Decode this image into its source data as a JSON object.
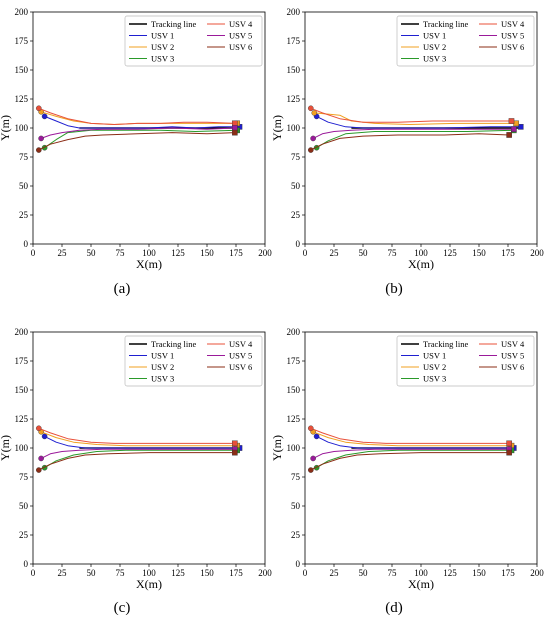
{
  "figure": {
    "panels": [
      "(a)",
      "(b)",
      "(c)",
      "(d)"
    ]
  },
  "series_style": {
    "names": [
      "Tracking line",
      "USV 1",
      "USV 2",
      "USV 3",
      "USV 4",
      "USV 5",
      "USV 6"
    ],
    "colors": [
      "#000000",
      "#1f1fd0",
      "#f0a020",
      "#2a9a2a",
      "#e8503a",
      "#9a1a9a",
      "#8b2d16"
    ]
  },
  "chart_data": [
    {
      "type": "line",
      "panel_label": "(a)",
      "xlabel": "X(m)",
      "ylabel": "Y(m)",
      "xlim": [
        0,
        200
      ],
      "ylim": [
        0,
        200
      ],
      "xticks": [
        0,
        25,
        50,
        75,
        100,
        125,
        150,
        175,
        200
      ],
      "yticks": [
        0,
        25,
        50,
        75,
        100,
        125,
        150,
        175,
        200
      ],
      "legend_position": "top-right",
      "series": [
        {
          "name": "Tracking line",
          "x": [
            40,
            176
          ],
          "y": [
            100,
            100
          ]
        },
        {
          "name": "USV 1",
          "x": [
            10,
            20,
            30,
            40,
            60,
            80,
            100,
            120,
            140,
            160,
            178
          ],
          "y": [
            110,
            106,
            102,
            100,
            100,
            100,
            100,
            101,
            100,
            101,
            101
          ]
        },
        {
          "name": "USV 2",
          "x": [
            7,
            20,
            35,
            50,
            70,
            90,
            110,
            130,
            150,
            176
          ],
          "y": [
            114,
            110,
            106,
            104,
            103,
            104,
            104,
            104,
            104,
            104
          ]
        },
        {
          "name": "USV 3",
          "x": [
            10,
            20,
            30,
            50,
            80,
            110,
            140,
            176
          ],
          "y": [
            83,
            90,
            96,
            98,
            98,
            98,
            97,
            98
          ]
        },
        {
          "name": "USV 4",
          "x": [
            5,
            15,
            30,
            50,
            70,
            90,
            110,
            130,
            150,
            174
          ],
          "y": [
            117,
            113,
            108,
            104,
            103,
            104,
            104,
            105,
            105,
            104
          ]
        },
        {
          "name": "USV 5",
          "x": [
            7,
            15,
            25,
            40,
            60,
            90,
            120,
            150,
            174
          ],
          "y": [
            91,
            94,
            96,
            98,
            99,
            99,
            100,
            99,
            100
          ]
        },
        {
          "name": "USV 6",
          "x": [
            5,
            15,
            30,
            45,
            60,
            90,
            120,
            150,
            174
          ],
          "y": [
            81,
            86,
            90,
            93,
            94,
            95,
            96,
            95,
            96
          ]
        }
      ]
    },
    {
      "type": "line",
      "panel_label": "(b)",
      "xlabel": "X(m)",
      "ylabel": "Y(m)",
      "xlim": [
        0,
        200
      ],
      "ylim": [
        0,
        200
      ],
      "xticks": [
        0,
        25,
        50,
        75,
        100,
        125,
        150,
        175,
        200
      ],
      "yticks": [
        0,
        25,
        50,
        75,
        100,
        125,
        150,
        175,
        200
      ],
      "legend_position": "top-right",
      "series": [
        {
          "name": "Tracking line",
          "x": [
            40,
            186
          ],
          "y": [
            100,
            100
          ]
        },
        {
          "name": "USV 1",
          "x": [
            10,
            20,
            35,
            50,
            80,
            120,
            160,
            186
          ],
          "y": [
            110,
            105,
            101,
            100,
            100,
            100,
            101,
            101
          ]
        },
        {
          "name": "USV 2",
          "x": [
            8,
            20,
            30,
            40,
            60,
            90,
            130,
            182
          ],
          "y": [
            113,
            112,
            111,
            106,
            104,
            103,
            104,
            104
          ]
        },
        {
          "name": "USV 3",
          "x": [
            10,
            20,
            35,
            60,
            100,
            140,
            180
          ],
          "y": [
            83,
            89,
            95,
            97,
            97,
            97,
            98
          ]
        },
        {
          "name": "USV 4",
          "x": [
            5,
            15,
            30,
            50,
            80,
            110,
            140,
            178
          ],
          "y": [
            117,
            113,
            108,
            105,
            105,
            106,
            106,
            106
          ]
        },
        {
          "name": "USV 5",
          "x": [
            7,
            15,
            25,
            40,
            60,
            100,
            140,
            180
          ],
          "y": [
            91,
            95,
            97,
            98,
            99,
            99,
            99,
            99
          ]
        },
        {
          "name": "USV 6",
          "x": [
            5,
            15,
            30,
            50,
            80,
            120,
            150,
            176
          ],
          "y": [
            81,
            86,
            91,
            93,
            94,
            94,
            95,
            94
          ]
        }
      ]
    },
    {
      "type": "line",
      "panel_label": "(c)",
      "xlabel": "X(m)",
      "ylabel": "Y(m)",
      "xlim": [
        0,
        200
      ],
      "ylim": [
        0,
        200
      ],
      "xticks": [
        0,
        25,
        50,
        75,
        100,
        125,
        150,
        175,
        200
      ],
      "yticks": [
        0,
        25,
        50,
        75,
        100,
        125,
        150,
        175,
        200
      ],
      "legend_position": "top-right",
      "series": [
        {
          "name": "Tracking line",
          "x": [
            40,
            178
          ],
          "y": [
            100,
            100
          ]
        },
        {
          "name": "USV 1",
          "x": [
            10,
            20,
            30,
            45,
            60,
            100,
            140,
            178
          ],
          "y": [
            110,
            105,
            102,
            100,
            100,
            100,
            100,
            100
          ]
        },
        {
          "name": "USV 2",
          "x": [
            7,
            20,
            35,
            55,
            80,
            120,
            176
          ],
          "y": [
            114,
            109,
            105,
            103,
            102,
            102,
            102
          ]
        },
        {
          "name": "USV 3",
          "x": [
            10,
            20,
            35,
            55,
            80,
            120,
            176
          ],
          "y": [
            83,
            89,
            94,
            97,
            98,
            98,
            98
          ]
        },
        {
          "name": "USV 4",
          "x": [
            5,
            15,
            30,
            50,
            70,
            100,
            140,
            174
          ],
          "y": [
            117,
            113,
            108,
            105,
            104,
            104,
            104,
            104
          ]
        },
        {
          "name": "USV 5",
          "x": [
            7,
            15,
            25,
            40,
            60,
            100,
            140,
            174
          ],
          "y": [
            91,
            95,
            97,
            98,
            99,
            99,
            99,
            99
          ]
        },
        {
          "name": "USV 6",
          "x": [
            5,
            15,
            30,
            45,
            65,
            100,
            140,
            174
          ],
          "y": [
            81,
            86,
            91,
            94,
            95,
            96,
            96,
            96
          ]
        }
      ]
    },
    {
      "type": "line",
      "panel_label": "(d)",
      "xlabel": "X(m)",
      "ylabel": "Y(m)",
      "xlim": [
        0,
        200
      ],
      "ylim": [
        0,
        200
      ],
      "xticks": [
        0,
        25,
        50,
        75,
        100,
        125,
        150,
        175,
        200
      ],
      "yticks": [
        0,
        25,
        50,
        75,
        100,
        125,
        150,
        175,
        200
      ],
      "legend_position": "top-right",
      "series": [
        {
          "name": "Tracking line",
          "x": [
            40,
            180
          ],
          "y": [
            100,
            100
          ]
        },
        {
          "name": "USV 1",
          "x": [
            10,
            20,
            30,
            45,
            60,
            100,
            140,
            180
          ],
          "y": [
            110,
            105,
            102,
            100,
            100,
            100,
            100,
            100
          ]
        },
        {
          "name": "USV 2",
          "x": [
            7,
            20,
            35,
            55,
            80,
            120,
            178
          ],
          "y": [
            114,
            109,
            105,
            103,
            102,
            102,
            102
          ]
        },
        {
          "name": "USV 3",
          "x": [
            10,
            20,
            35,
            55,
            80,
            120,
            178
          ],
          "y": [
            83,
            89,
            94,
            97,
            98,
            98,
            98
          ]
        },
        {
          "name": "USV 4",
          "x": [
            5,
            15,
            30,
            50,
            70,
            100,
            140,
            176
          ],
          "y": [
            117,
            113,
            108,
            105,
            104,
            104,
            104,
            104
          ]
        },
        {
          "name": "USV 5",
          "x": [
            7,
            15,
            25,
            40,
            60,
            100,
            140,
            176
          ],
          "y": [
            91,
            95,
            97,
            98,
            99,
            99,
            99,
            99
          ]
        },
        {
          "name": "USV 6",
          "x": [
            5,
            15,
            30,
            45,
            65,
            100,
            140,
            176
          ],
          "y": [
            81,
            86,
            91,
            94,
            95,
            96,
            96,
            96
          ]
        }
      ]
    }
  ]
}
